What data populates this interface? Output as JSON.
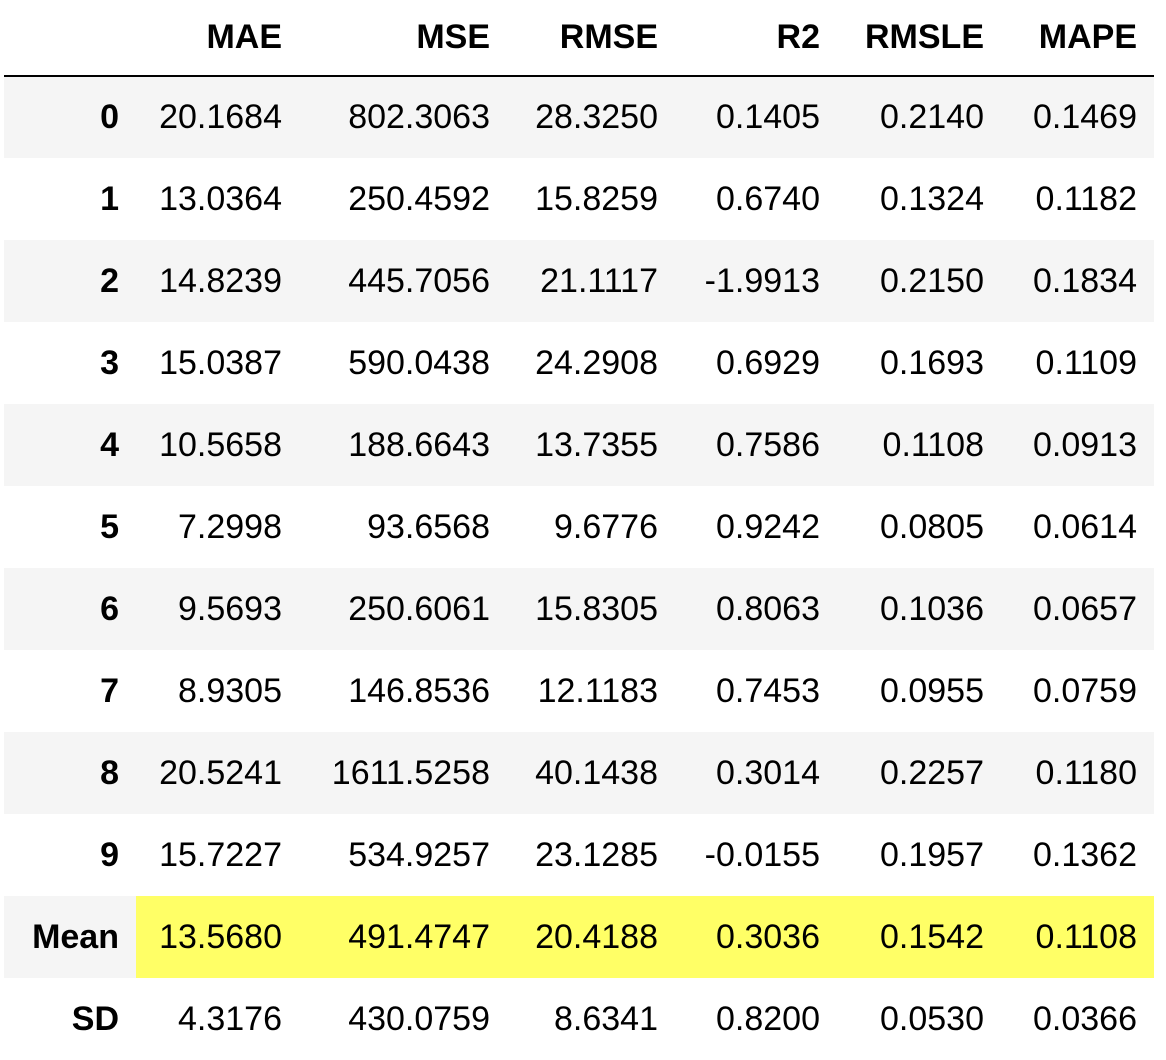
{
  "table": {
    "columns": [
      "",
      "MAE",
      "MSE",
      "RMSE",
      "R2",
      "RMSLE",
      "MAPE"
    ],
    "highlight_color": "#ffff66",
    "highlight_row": "Mean",
    "rows": [
      {
        "index": "0",
        "values": [
          "20.1684",
          "802.3063",
          "28.3250",
          "0.1405",
          "0.2140",
          "0.1469"
        ]
      },
      {
        "index": "1",
        "values": [
          "13.0364",
          "250.4592",
          "15.8259",
          "0.6740",
          "0.1324",
          "0.1182"
        ]
      },
      {
        "index": "2",
        "values": [
          "14.8239",
          "445.7056",
          "21.1117",
          "-1.9913",
          "0.2150",
          "0.1834"
        ]
      },
      {
        "index": "3",
        "values": [
          "15.0387",
          "590.0438",
          "24.2908",
          "0.6929",
          "0.1693",
          "0.1109"
        ]
      },
      {
        "index": "4",
        "values": [
          "10.5658",
          "188.6643",
          "13.7355",
          "0.7586",
          "0.1108",
          "0.0913"
        ]
      },
      {
        "index": "5",
        "values": [
          "7.2998",
          "93.6568",
          "9.6776",
          "0.9242",
          "0.0805",
          "0.0614"
        ]
      },
      {
        "index": "6",
        "values": [
          "9.5693",
          "250.6061",
          "15.8305",
          "0.8063",
          "0.1036",
          "0.0657"
        ]
      },
      {
        "index": "7",
        "values": [
          "8.9305",
          "146.8536",
          "12.1183",
          "0.7453",
          "0.0955",
          "0.0759"
        ]
      },
      {
        "index": "8",
        "values": [
          "20.5241",
          "1611.5258",
          "40.1438",
          "0.3014",
          "0.2257",
          "0.1180"
        ]
      },
      {
        "index": "9",
        "values": [
          "15.7227",
          "534.9257",
          "23.1285",
          "-0.0155",
          "0.1957",
          "0.1362"
        ]
      },
      {
        "index": "Mean",
        "values": [
          "13.5680",
          "491.4747",
          "20.4188",
          "0.3036",
          "0.1542",
          "0.1108"
        ]
      },
      {
        "index": "SD",
        "values": [
          "4.3176",
          "430.0759",
          "8.6341",
          "0.8200",
          "0.0530",
          "0.0366"
        ]
      }
    ]
  }
}
